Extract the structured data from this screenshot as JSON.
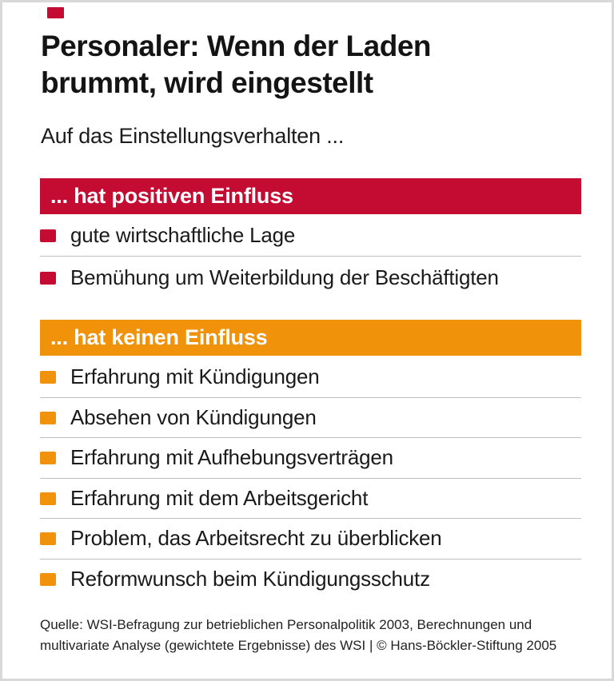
{
  "colors": {
    "red": "#c40b32",
    "orange": "#f0920a",
    "divider": "#bfbfbf",
    "frame": "#d8d8d8"
  },
  "header": {
    "title_line1": "Personaler: Wenn der Laden",
    "title_line2": "brummt, wird eingestellt",
    "subtitle": "Auf das Einstellungsverhalten ..."
  },
  "sections": [
    {
      "id": "positive-influence",
      "header": "... hat positiven Einfluss",
      "color": "#c40b32",
      "items": [
        "gute wirtschaftliche Lage",
        "Bemühung um Weiterbildung der Beschäftigten"
      ]
    },
    {
      "id": "no-influence",
      "header": "... hat keinen Einfluss",
      "color": "#f0920a",
      "items": [
        "Erfahrung mit Kündigungen",
        "Absehen von Kündigungen",
        "Erfahrung mit Aufhebungsverträgen",
        "Erfahrung mit dem Arbeitsgericht",
        "Problem, das Arbeitsrecht zu überblicken",
        "Reformwunsch beim Kündigungsschutz"
      ]
    }
  ],
  "source": {
    "line1": "Quelle: WSI-Befragung zur betrieblichen Personalpolitik 2003, Berechnungen und",
    "line2": "multivariate Analyse (gewichtete Ergebnisse) des WSI | © Hans-Böckler-Stiftung 2005"
  }
}
